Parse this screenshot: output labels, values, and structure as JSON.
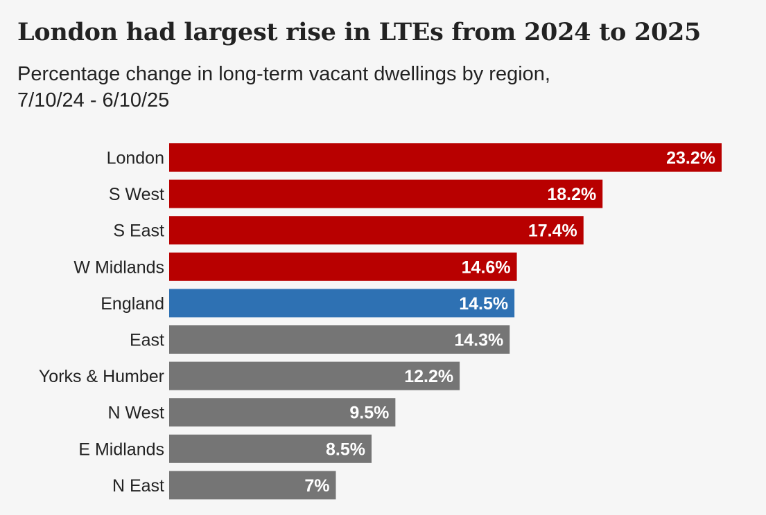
{
  "title": "London had largest rise in LTEs from 2024 to 2025",
  "subtitle_line1": "Percentage change in long-term vacant dwellings by region,",
  "subtitle_line2": "7/10/24 - 6/10/25",
  "chart_data": {
    "type": "bar",
    "orientation": "horizontal",
    "title": "London had largest rise in LTEs from 2024 to 2025",
    "subtitle": "Percentage change in long-term vacant dwellings by region, 7/10/24 - 6/10/25",
    "categories": [
      "London",
      "S West",
      "S East",
      "W Midlands",
      "England",
      "East",
      "Yorks & Humber",
      "N West",
      "E Midlands",
      "N East"
    ],
    "values": [
      23.2,
      18.2,
      17.4,
      14.6,
      14.5,
      14.3,
      12.2,
      9.5,
      8.5,
      7
    ],
    "data_labels": [
      "23.2%",
      "18.2%",
      "17.4%",
      "14.6%",
      "14.5%",
      "14.3%",
      "12.2%",
      "9.5%",
      "8.5%",
      "7%"
    ],
    "bar_colors": [
      "#b80000",
      "#b80000",
      "#b80000",
      "#b80000",
      "#2e71b3",
      "#757575",
      "#757575",
      "#757575",
      "#757575",
      "#757575"
    ],
    "xlim": [
      0,
      23.2
    ],
    "grid": false,
    "legend": "none"
  }
}
